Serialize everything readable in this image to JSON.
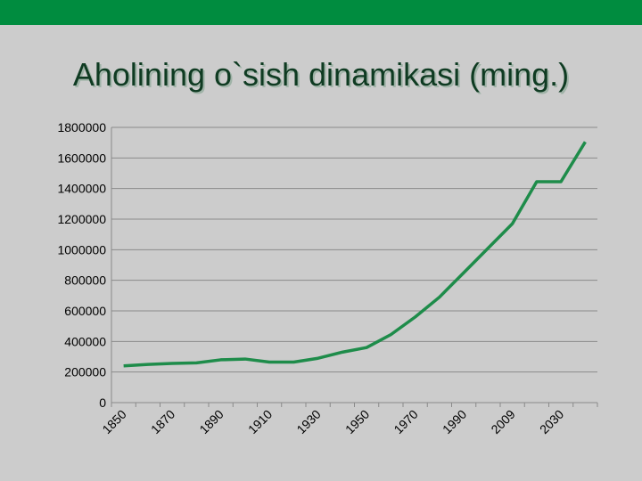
{
  "chart_data": {
    "type": "line",
    "title": "Aholining o`sish dinamikasi (ming.)",
    "categories": [
      "1850",
      null,
      "1870",
      null,
      "1890",
      null,
      "1910",
      null,
      "1930",
      null,
      "1950",
      null,
      "1970",
      null,
      "1990",
      null,
      "2009",
      null,
      "2030",
      null
    ],
    "series": [
      {
        "color": "#1e8c4a",
        "values": [
          240000,
          250000,
          256000,
          260000,
          280000,
          285000,
          265000,
          265000,
          290000,
          330000,
          360000,
          445000,
          560000,
          690000,
          850000,
          1010000,
          1170000,
          1445000,
          1445000,
          1705000
        ]
      }
    ],
    "ylim": [
      0,
      1800000
    ],
    "yticks": [
      0,
      200000,
      400000,
      600000,
      800000,
      1000000,
      1200000,
      1400000,
      1600000,
      1800000
    ],
    "grid": true
  }
}
